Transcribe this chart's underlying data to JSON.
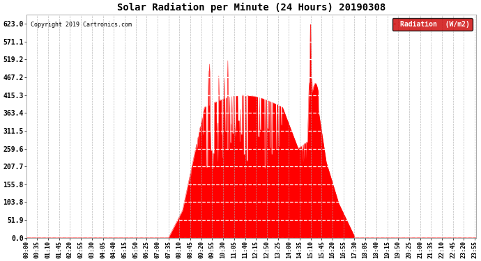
{
  "title": "Solar Radiation per Minute (24 Hours) 20190308",
  "copyright_text": "Copyright 2019 Cartronics.com",
  "fill_color": "#FF0000",
  "line_color": "#FF0000",
  "background_color": "#FFFFFF",
  "yticks": [
    0.0,
    51.9,
    103.8,
    155.8,
    207.7,
    259.6,
    311.5,
    363.4,
    415.3,
    467.2,
    519.2,
    571.1,
    623.0
  ],
  "ymax": 650,
  "legend_label": "Radiation  (W/m2)",
  "legend_bg": "#CC0000",
  "legend_text_color": "#FFFFFF",
  "total_minutes": 1440,
  "peak_value": 623.0
}
